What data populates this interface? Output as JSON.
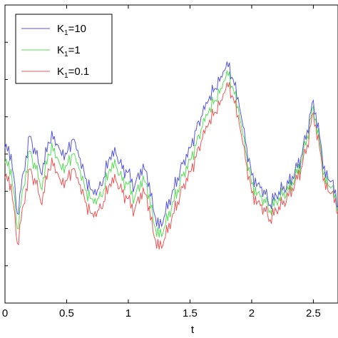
{
  "chart_data": {
    "type": "line",
    "title": "",
    "xlabel": "t",
    "ylabel": "",
    "xlim": [
      0,
      2.7
    ],
    "ylim": [
      0,
      1
    ],
    "grid": false,
    "legend_position": "top-left",
    "x_ticks": [
      "0",
      "0.5",
      "1",
      "1.5",
      "2",
      "2.5"
    ],
    "x": [
      0.0,
      0.05,
      0.1,
      0.15,
      0.2,
      0.25,
      0.3,
      0.35,
      0.4,
      0.45,
      0.5,
      0.55,
      0.6,
      0.65,
      0.7,
      0.75,
      0.8,
      0.85,
      0.9,
      0.95,
      1.0,
      1.05,
      1.1,
      1.15,
      1.2,
      1.25,
      1.3,
      1.35,
      1.4,
      1.45,
      1.5,
      1.55,
      1.6,
      1.65,
      1.7,
      1.75,
      1.8,
      1.85,
      1.9,
      1.95,
      2.0,
      2.05,
      2.1,
      2.15,
      2.2,
      2.25,
      2.3,
      2.35,
      2.4,
      2.45,
      2.5,
      2.55,
      2.6,
      2.65,
      2.7
    ],
    "series": [
      {
        "name": "K1=10",
        "label_main": "K",
        "label_sub": "1",
        "label_rest": "=10",
        "color": "#5555dd",
        "values": [
          0.52,
          0.5,
          0.3,
          0.44,
          0.56,
          0.5,
          0.43,
          0.54,
          0.56,
          0.51,
          0.5,
          0.55,
          0.49,
          0.42,
          0.38,
          0.38,
          0.42,
          0.49,
          0.5,
          0.45,
          0.44,
          0.39,
          0.45,
          0.44,
          0.32,
          0.25,
          0.3,
          0.36,
          0.42,
          0.48,
          0.52,
          0.58,
          0.63,
          0.68,
          0.72,
          0.76,
          0.81,
          0.75,
          0.66,
          0.54,
          0.43,
          0.4,
          0.38,
          0.33,
          0.36,
          0.38,
          0.4,
          0.44,
          0.49,
          0.58,
          0.68,
          0.56,
          0.42,
          0.41,
          0.32
        ]
      },
      {
        "name": "K1=1",
        "label_main": "K",
        "label_sub": "1",
        "label_rest": "=1",
        "color": "#55dd55",
        "values": [
          0.47,
          0.45,
          0.25,
          0.39,
          0.51,
          0.45,
          0.38,
          0.5,
          0.52,
          0.46,
          0.46,
          0.5,
          0.45,
          0.38,
          0.35,
          0.35,
          0.38,
          0.45,
          0.46,
          0.41,
          0.4,
          0.35,
          0.41,
          0.4,
          0.28,
          0.22,
          0.26,
          0.32,
          0.38,
          0.44,
          0.48,
          0.53,
          0.59,
          0.64,
          0.68,
          0.72,
          0.78,
          0.72,
          0.63,
          0.51,
          0.4,
          0.37,
          0.35,
          0.31,
          0.34,
          0.36,
          0.38,
          0.42,
          0.47,
          0.56,
          0.66,
          0.54,
          0.4,
          0.39,
          0.31
        ]
      },
      {
        "name": "K1=0.1",
        "label_main": "K",
        "label_sub": "1",
        "label_rest": "=0.1",
        "color": "#ee5555",
        "values": [
          0.42,
          0.4,
          0.2,
          0.33,
          0.45,
          0.4,
          0.33,
          0.45,
          0.47,
          0.41,
          0.41,
          0.45,
          0.4,
          0.34,
          0.3,
          0.31,
          0.34,
          0.4,
          0.41,
          0.37,
          0.35,
          0.31,
          0.37,
          0.36,
          0.24,
          0.18,
          0.22,
          0.28,
          0.34,
          0.4,
          0.44,
          0.49,
          0.55,
          0.6,
          0.64,
          0.68,
          0.74,
          0.69,
          0.6,
          0.48,
          0.37,
          0.34,
          0.32,
          0.28,
          0.31,
          0.33,
          0.36,
          0.4,
          0.45,
          0.53,
          0.64,
          0.52,
          0.38,
          0.37,
          0.3
        ]
      }
    ]
  }
}
